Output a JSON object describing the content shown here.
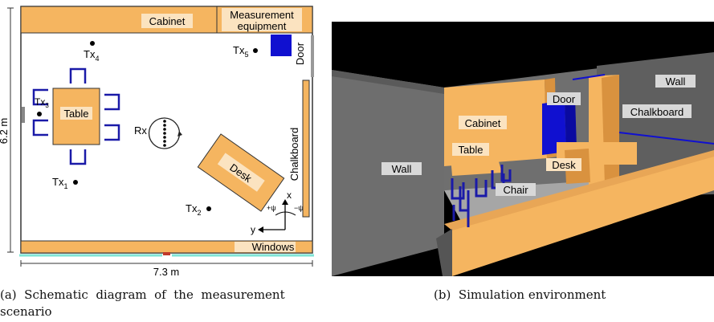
{
  "schematic": {
    "labels": {
      "cabinet": "Cabinet",
      "measurement_line1": "Measurement",
      "measurement_line2": "equipment",
      "door": "Door",
      "table": "Table",
      "desk": "Desk",
      "chalkboard": "Chalkboard",
      "windows": "Windows",
      "rx": "Rx"
    },
    "transmitters": [
      {
        "base": "Tx",
        "sub": "1"
      },
      {
        "base": "Tx",
        "sub": "2"
      },
      {
        "base": "Tx",
        "sub": "3"
      },
      {
        "base": "Tx",
        "sub": "4"
      },
      {
        "base": "Tx",
        "sub": "5"
      }
    ],
    "dimensions": {
      "height": "6.2 m",
      "width": "7.3 m"
    },
    "axes": {
      "x": "x",
      "y": "y",
      "plus_psi": "+ψ",
      "minus_psi": "−ψ"
    }
  },
  "simulation": {
    "labels": {
      "wall_right": "Wall",
      "wall_left": "Wall",
      "door": "Door",
      "chalkboard": "Chalkboard",
      "cabinet": "Cabinet",
      "table": "Table",
      "desk": "Desk",
      "chair": "Chair"
    }
  },
  "captions": {
    "a_line1": "(a)  Schematic  diagram  of  the  measurement",
    "a_line2": "scenario",
    "b": "(b)  Simulation environment"
  },
  "colors": {
    "furniture": "#f5b560",
    "furniture_dark": "#d9923f",
    "chair": "#1a1aa8",
    "door": "#1010d0",
    "wall": "#6f6f6f",
    "floor": "#a6a6a6",
    "window": "#7fe5d6",
    "label_bg": "#fbe3c0"
  }
}
